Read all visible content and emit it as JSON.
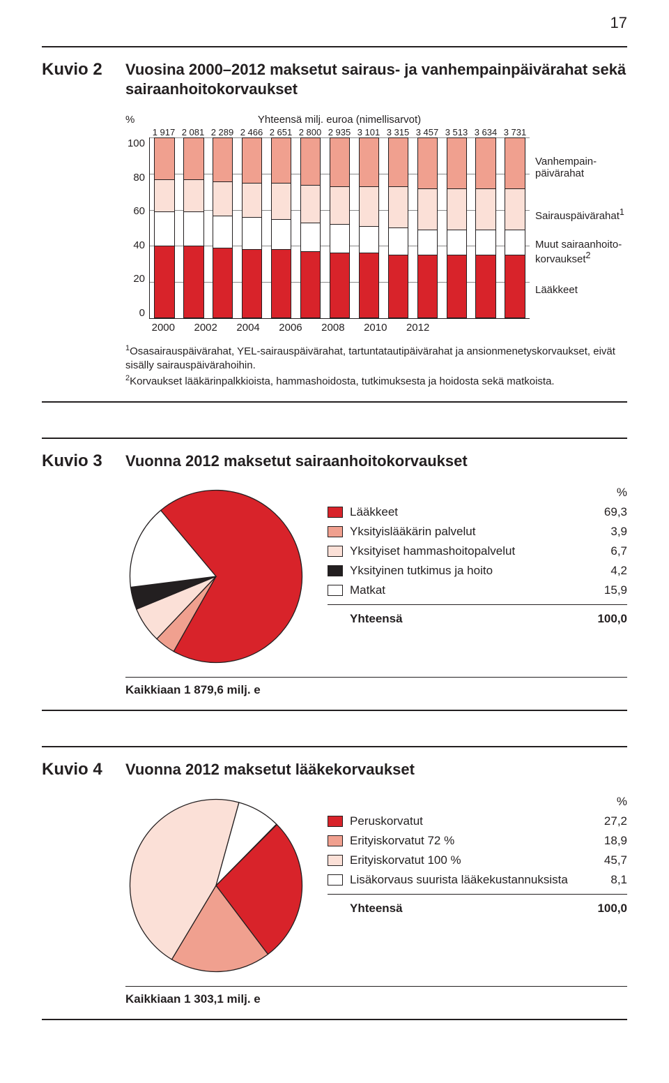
{
  "page_number": "17",
  "colors": {
    "red": "#d8232a",
    "salmon": "#f0a08f",
    "pale": "#fbe0d7",
    "white": "#ffffff",
    "black": "#231f20"
  },
  "kuvio2": {
    "label": "Kuvio 2",
    "title": "Vuosina 2000–2012 maksetut sairaus- ja vanhempainpäivärahat sekä sairaanhoitokorvaukset",
    "pct_symbol": "%",
    "subtitle": "Yhteensä milj. euroa (nimellisarvot)",
    "totals": [
      "1 917",
      "2 081",
      "2 289",
      "2 466",
      "2 651",
      "2 800",
      "2 935",
      "3 101",
      "3 315",
      "3 457",
      "3 513",
      "3 634",
      "3 731"
    ],
    "yticks": [
      "100",
      "80",
      "60",
      "40",
      "20",
      "0"
    ],
    "xticks": [
      "2000",
      "2002",
      "2004",
      "2006",
      "2008",
      "2010",
      "2012"
    ],
    "legend": {
      "a": "Vanhempain-\npäivärahat",
      "b": "Sairauspäivärahat",
      "b_sup": "1",
      "c": "Muut sairaanhoito-\nkorvaukset",
      "c_sup": "2",
      "d": "Lääkkeet"
    },
    "segments_colors": [
      "#f0a08f",
      "#fbe0d7",
      "#ffffff",
      "#d8232a"
    ],
    "bars": [
      [
        23,
        18,
        19,
        40
      ],
      [
        23,
        18,
        19,
        40
      ],
      [
        24,
        19,
        18,
        39
      ],
      [
        25,
        19,
        18,
        38
      ],
      [
        25,
        20,
        17,
        38
      ],
      [
        26,
        21,
        16,
        37
      ],
      [
        27,
        21,
        16,
        36
      ],
      [
        27,
        22,
        15,
        36
      ],
      [
        27,
        23,
        15,
        35
      ],
      [
        28,
        23,
        14,
        35
      ],
      [
        28,
        23,
        14,
        35
      ],
      [
        28,
        23,
        14,
        35
      ],
      [
        28,
        23,
        14,
        35
      ]
    ],
    "footnote1_pre": "1",
    "footnote1": "Osasairauspäivärahat, YEL-sairauspäivärahat, tartuntatautipäivärahat ja ansionmenetyskor­vaukset, eivät sisälly sairauspäivärahoihin.",
    "footnote2_pre": "2",
    "footnote2": "Korvaukset lääkärinpalkkioista, hammashoidosta, tutkimuksesta ja hoidosta sekä matkoista."
  },
  "kuvio3": {
    "label": "Kuvio 3",
    "title": "Vuonna 2012 maksetut sairaanhoitokorvaukset",
    "pct_symbol": "%",
    "items": [
      {
        "label": "Lääkkeet",
        "value": "69,3",
        "pct": 69.3,
        "color": "#d8232a"
      },
      {
        "label": "Yksityislääkärin palvelut",
        "value": "3,9",
        "pct": 3.9,
        "color": "#f0a08f"
      },
      {
        "label": "Yksityiset hammashoitopalvelut",
        "value": "6,7",
        "pct": 6.7,
        "color": "#fbe0d7"
      },
      {
        "label": "Yksityinen tutkimus ja hoito",
        "value": "4,2",
        "pct": 4.2,
        "color": "#231f20"
      },
      {
        "label": "Matkat",
        "value": "15,9",
        "pct": 15.9,
        "color": "#ffffff"
      }
    ],
    "total_label": "Yhteensä",
    "total_value": "100,0",
    "caption": "Kaikkiaan 1 879,6 milj. e",
    "start_angle": -130
  },
  "kuvio4": {
    "label": "Kuvio 4",
    "title": "Vuonna 2012 maksetut lääkekorvaukset",
    "pct_symbol": "%",
    "items": [
      {
        "label": "Peruskorvatut",
        "value": "27,2",
        "pct": 27.2,
        "color": "#d8232a"
      },
      {
        "label": "Erityiskorvatut 72 %",
        "value": "18,9",
        "pct": 18.9,
        "color": "#f0a08f"
      },
      {
        "label": "Erityiskorvatut 100 %",
        "value": "45,7",
        "pct": 45.7,
        "color": "#fbe0d7"
      },
      {
        "label": "Lisäkorvaus suurista lääkekustannuksista",
        "value": "8,1",
        "pct": 8.1,
        "color": "#ffffff"
      }
    ],
    "total_label": "Yhteensä",
    "total_value": "100,0",
    "caption": "Kaikkiaan 1 303,1 milj. e",
    "start_angle": -45
  }
}
